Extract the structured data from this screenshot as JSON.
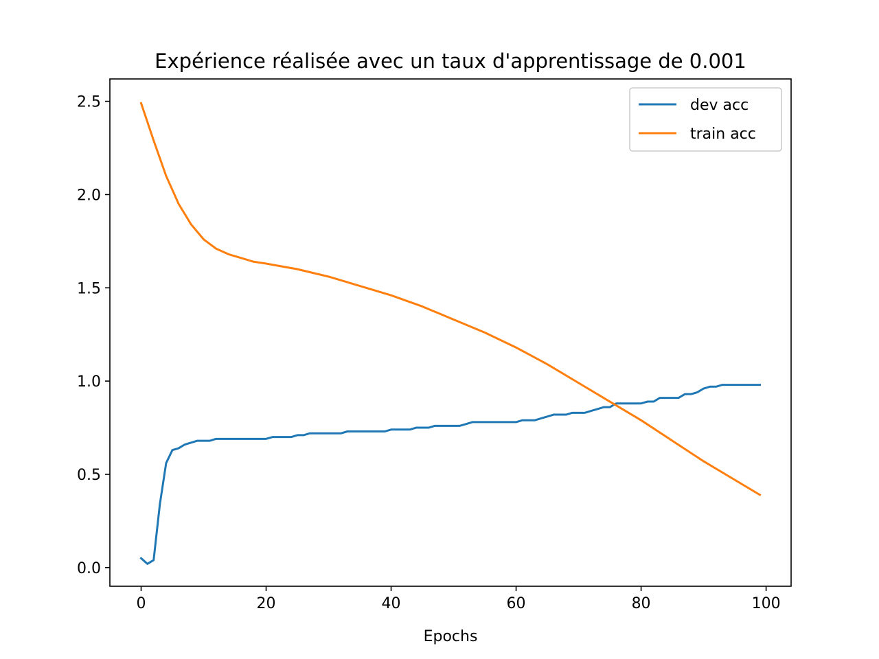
{
  "chart_data": {
    "type": "line",
    "title": "Expérience réalisée avec un taux d'apprentissage de 0.001",
    "xlabel": "Epochs",
    "ylabel": "",
    "xlim": [
      -5,
      104
    ],
    "ylim": [
      -0.1,
      2.62
    ],
    "xticks": [
      0,
      20,
      40,
      60,
      80,
      100
    ],
    "xtick_labels": [
      "0",
      "20",
      "40",
      "60",
      "80",
      "100"
    ],
    "yticks": [
      0.0,
      0.5,
      1.0,
      1.5,
      2.0,
      2.5
    ],
    "ytick_labels": [
      "0.0",
      "0.5",
      "1.0",
      "1.5",
      "2.0",
      "2.5"
    ],
    "grid": false,
    "legend_position": "top-right",
    "series": [
      {
        "name": "dev acc",
        "color": "#1f77b4",
        "x": [
          0,
          1,
          2,
          3,
          4,
          5,
          6,
          7,
          8,
          9,
          10,
          11,
          12,
          13,
          14,
          15,
          16,
          17,
          18,
          19,
          20,
          21,
          22,
          23,
          24,
          25,
          26,
          27,
          28,
          29,
          30,
          31,
          32,
          33,
          34,
          35,
          36,
          37,
          38,
          39,
          40,
          41,
          42,
          43,
          44,
          45,
          46,
          47,
          48,
          49,
          50,
          51,
          52,
          53,
          54,
          55,
          56,
          57,
          58,
          59,
          60,
          61,
          62,
          63,
          64,
          65,
          66,
          67,
          68,
          69,
          70,
          71,
          72,
          73,
          74,
          75,
          76,
          77,
          78,
          79,
          80,
          81,
          82,
          83,
          84,
          85,
          86,
          87,
          88,
          89,
          90,
          91,
          92,
          93,
          94,
          95,
          96,
          97,
          98,
          99
        ],
        "values": [
          0.05,
          0.02,
          0.04,
          0.34,
          0.56,
          0.63,
          0.64,
          0.66,
          0.67,
          0.68,
          0.68,
          0.68,
          0.69,
          0.69,
          0.69,
          0.69,
          0.69,
          0.69,
          0.69,
          0.69,
          0.69,
          0.7,
          0.7,
          0.7,
          0.7,
          0.71,
          0.71,
          0.72,
          0.72,
          0.72,
          0.72,
          0.72,
          0.72,
          0.73,
          0.73,
          0.73,
          0.73,
          0.73,
          0.73,
          0.73,
          0.74,
          0.74,
          0.74,
          0.74,
          0.75,
          0.75,
          0.75,
          0.76,
          0.76,
          0.76,
          0.76,
          0.76,
          0.77,
          0.78,
          0.78,
          0.78,
          0.78,
          0.78,
          0.78,
          0.78,
          0.78,
          0.79,
          0.79,
          0.79,
          0.8,
          0.81,
          0.82,
          0.82,
          0.82,
          0.83,
          0.83,
          0.83,
          0.84,
          0.85,
          0.86,
          0.86,
          0.88,
          0.88,
          0.88,
          0.88,
          0.88,
          0.89,
          0.89,
          0.91,
          0.91,
          0.91,
          0.91,
          0.93,
          0.93,
          0.94,
          0.96,
          0.97,
          0.97,
          0.98,
          0.98,
          0.98,
          0.98,
          0.98,
          0.98,
          0.98
        ]
      },
      {
        "name": "train acc",
        "color": "#ff7f0e",
        "x": [
          0,
          2,
          4,
          6,
          8,
          10,
          12,
          14,
          16,
          18,
          20,
          25,
          30,
          35,
          40,
          45,
          50,
          55,
          60,
          65,
          70,
          75,
          80,
          85,
          90,
          95,
          99
        ],
        "values": [
          2.49,
          2.29,
          2.1,
          1.95,
          1.84,
          1.76,
          1.71,
          1.68,
          1.66,
          1.64,
          1.63,
          1.6,
          1.56,
          1.51,
          1.46,
          1.4,
          1.33,
          1.26,
          1.18,
          1.09,
          0.99,
          0.89,
          0.79,
          0.68,
          0.57,
          0.47,
          0.39
        ]
      }
    ]
  }
}
